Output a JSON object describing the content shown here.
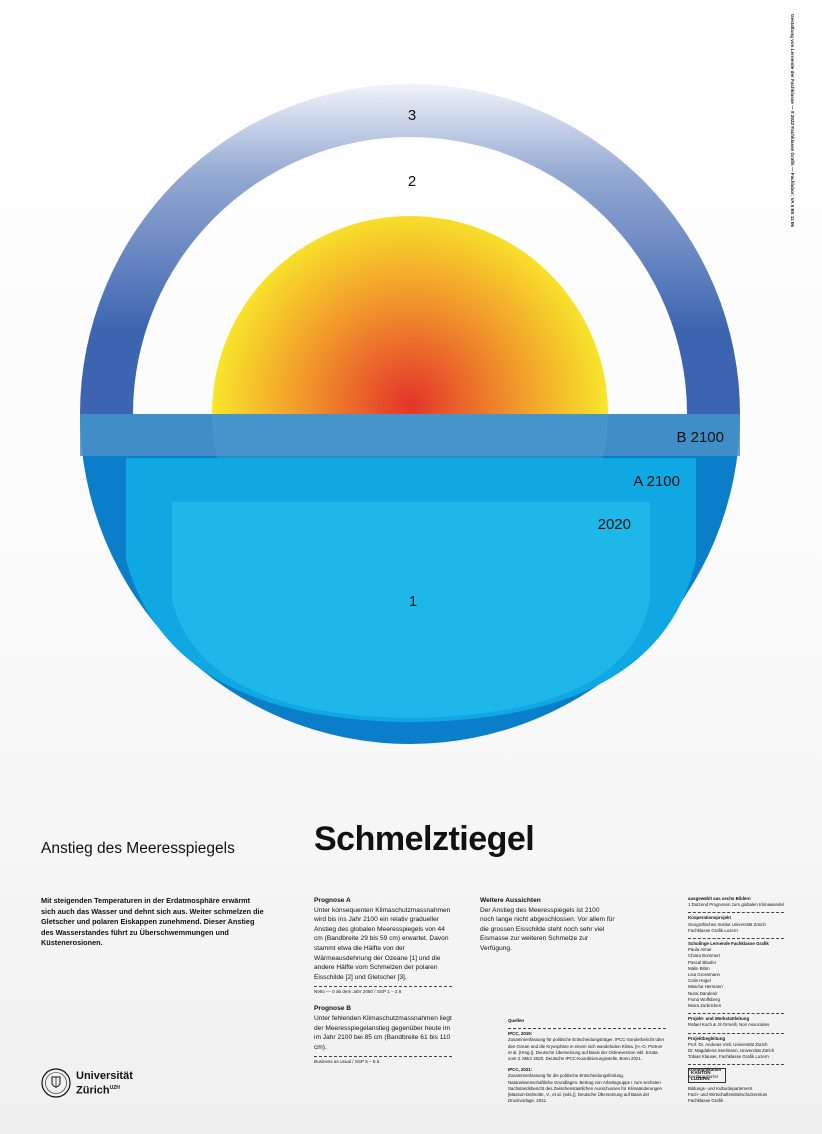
{
  "labels": {
    "ring3": "3",
    "ring2": "2",
    "b2100": "B 2100",
    "a2100": "A 2100",
    "y2020": "2020",
    "water1": "1"
  },
  "subtitle": "Anstieg des Meeresspiegels",
  "title": "Schmelztiegel",
  "intro": "Mit steigenden Temperaturen in der Erdatmosphäre erwärmt sich auch das Wasser und dehnt sich aus. Weiter schmelzen die Gletscher und polaren Eiskappen zunehmend. Dieser Anstieg des Wasserstandes führt zu Überschwemmungen und Küstenerosionen.",
  "prognoseA": {
    "heading": "Prognose A",
    "body": "Unter konsequenten Klimaschutzmassnahmen wird bis ins Jahr 2100 ein relativ gradueller Anstieg des globalen Meeresspiegels von 44 cm (Bandbreite 29 bis 59 cm) erwartet. Davon stammt etwa die Hälfte von der Wärmeausdehnung der Ozeane [1] und die andere Hälfte vom Schmelzen der polaren Eisschilde [2] und Gletscher [3].",
    "note": "Netto — 0 ab dem Jahr 2050 / SSP 1 – 2.6"
  },
  "prognoseB": {
    "heading": "Prognose B",
    "body": "Unter fehlenden Klimaschutzmassnahmen liegt der Meeresspiegelanstieg gegenüber heute im im Jahr 2100 bei 85 cm (Bandbreite 61 bis 110 cm).",
    "note": "Business as usual / SSP 5 – 8.5"
  },
  "aussichten": {
    "heading": "Weitere Aussichten",
    "body": "Der Anstieg des Meeresspiegels ist 2100 noch lange nicht abgeschlossen. Vor allem für die grossen Eisschilde steht noch sehr viel Eismasse zur weiteren Schmelze zur Verfügung."
  },
  "quellen": {
    "heading": "Quellen",
    "p1": "IPCC, 2019:",
    "p1text": "Zusammenfassung für politische Entscheidungsträger. IPCC-Sonderbericht über den Ozean und die Kryosphäre in einem sich wandelnden Klima. [H.-O. Pörtner et al. (Hrsg.)]. Deutsche Übersetzung auf Basis der Onlineversion inkl. Errata vom 3. März 2020. Deutsche IPCC-Koordinierungsstelle, Bonn 2021.",
    "p2": "IPCC, 2021:",
    "p2text": "Zusammenfassung für die politische Entscheidungsfindung. Naturwissenschaftliche Grundlagen. Beitrag von Arbeitsgruppe I zum sechsten Sachstandsbericht des Zwischenstaatlichen Ausschusses für Klimaänderungen [Masson-Delmotte, V., et al. (eds.)]. Deutsche Übersetzung auf Basis der Druckvorlage, 2021."
  },
  "credits": {
    "c1": "ausgewählt aus sechs Bildern",
    "c1b": "1 Dutzend Prognosen zum globalen Klimawandel",
    "c2": "Kooperationsprojekt",
    "c2b": "Geografisches Institut Universität Zürich",
    "c2c": "Fachklasse Grafik Luzern",
    "c3": "Schulinge Lernende Fachklasse Grafik",
    "names": [
      "Paula Aimar",
      "Chiara Bommert",
      "Pascal Blaufer",
      "Malin Blöm",
      "Lisa Grossmann",
      "Colin Hügel",
      "Mascha Hermann",
      "Nurai Dandenir",
      "Fiona Wolfsberg",
      "Moira Zurbrichen"
    ],
    "c4": "Projekt- und Werkstattleitung",
    "c4b": "Rafael Koch & Jil Ormelli, Noir Associates",
    "c5": "Projektbegleitung",
    "c5b": [
      "Prof. Dr. Andreas Vieli, Universität Zürich",
      "Dr. Magdalena Seelmann, Universität Zürich",
      "Tobias Klauser, Fachklasse Grafik Luzern"
    ],
    "c6": "Kommunikation",
    "c6b": "Svetlana Furrer"
  },
  "vertical": "Gestaltung von Lernende der Fachklasse — 8 2022 Fachklasse Grafik — Fachlabor: VA 5 B5 11 06",
  "uzh": {
    "line1": "Universität",
    "line2": "Zürich",
    "sup": "UZH"
  },
  "kanton": {
    "line1": "KANTON",
    "line2": "LUZERN",
    "t1": "Bildungs- und Kulturdepartement",
    "t2": "Fach- und Wirtschaftsmittelschulzentrum",
    "t3": "Fachklasse Grafik"
  },
  "colors": {
    "sunCenter": "#e3342a",
    "sunEdge": "#f8e82a",
    "ring": "#3d64b0",
    "seaDark": "#0a7ec8",
    "seaLight": "#1db7ea"
  }
}
